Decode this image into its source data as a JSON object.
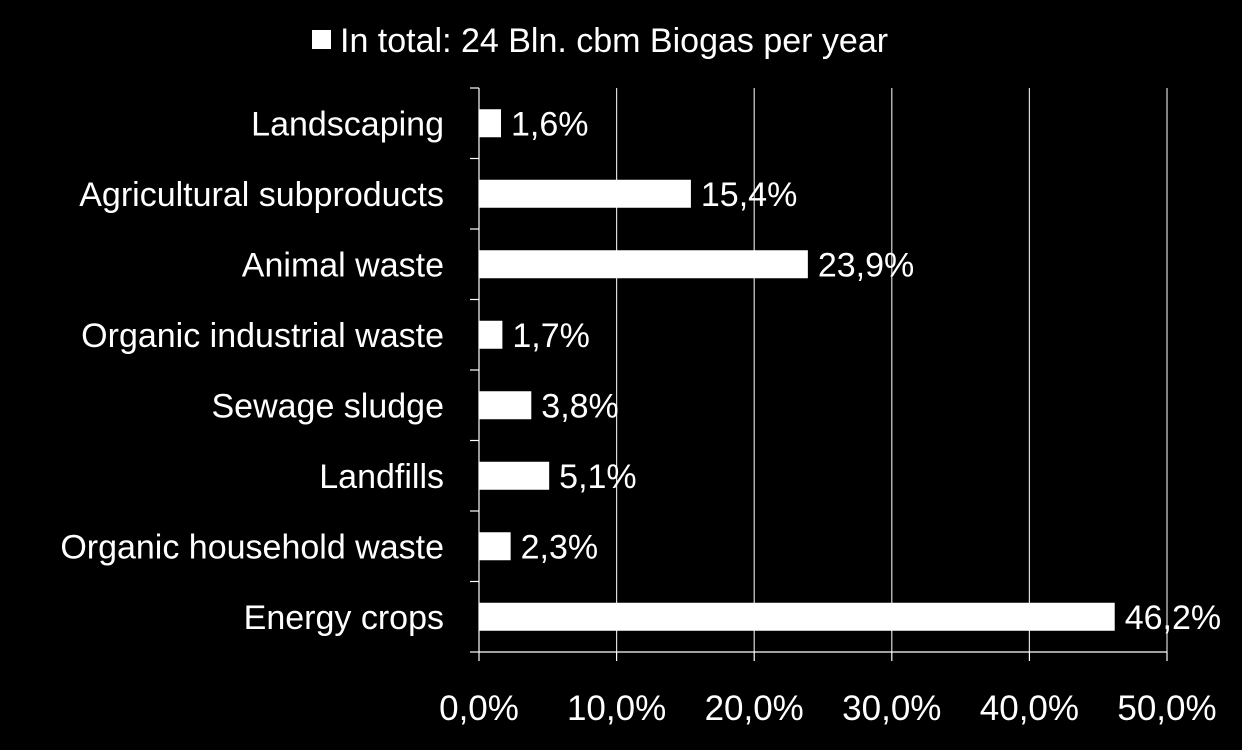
{
  "chart_data": {
    "type": "bar",
    "orientation": "horizontal",
    "legend_position": "top",
    "grid": true,
    "background_color": "#000000",
    "bar_color": "#ffffff",
    "text_color": "#ffffff",
    "categories": [
      "Landscaping",
      "Agricultural subproducts",
      "Animal waste",
      "Organic industrial waste",
      "Sewage sludge",
      "Landfills",
      "Organic household waste",
      "Energy crops"
    ],
    "series": [
      {
        "name": "In total: 24 Bln. cbm Biogas per year",
        "values": [
          1.6,
          15.4,
          23.9,
          1.7,
          3.8,
          5.1,
          2.3,
          46.2
        ],
        "data_labels": [
          "1,6%",
          "15,4%",
          "23,9%",
          "1,7%",
          "3,8%",
          "5,1%",
          "2,3%",
          "46,2%"
        ]
      }
    ],
    "xlim": [
      0,
      50
    ],
    "x_ticks": [
      0,
      10,
      20,
      30,
      40,
      50
    ],
    "x_tick_labels": [
      "0,0%",
      "10,0%",
      "20,0%",
      "30,0%",
      "40,0%",
      "50,0%"
    ]
  }
}
